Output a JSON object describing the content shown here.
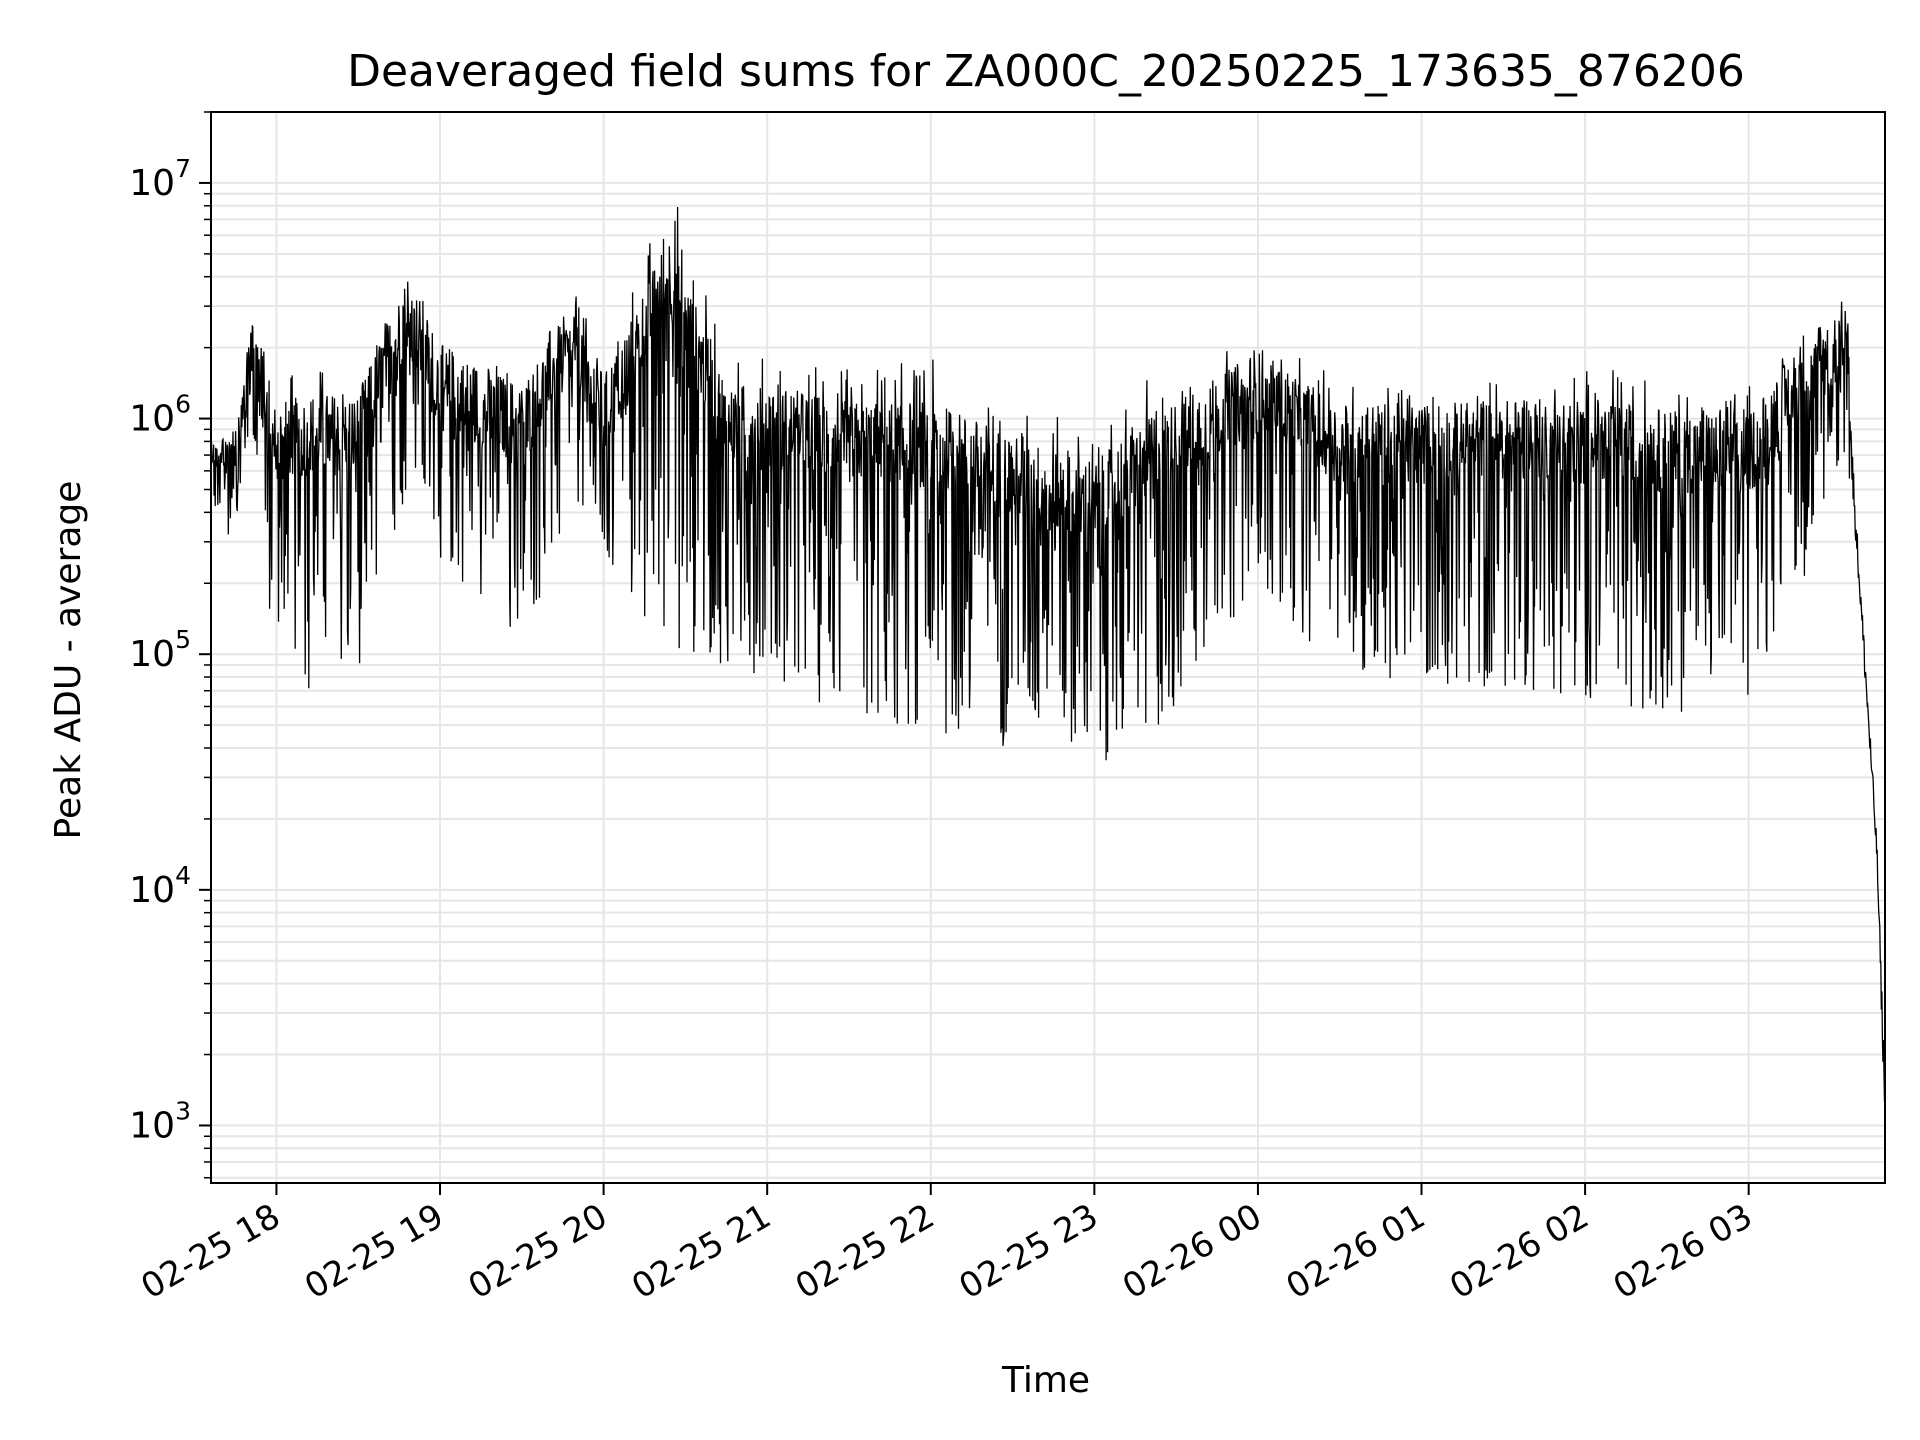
{
  "chart_data": {
    "type": "line",
    "title": "Deaveraged field sums for ZA000C_20250225_173635_876206",
    "xlabel": "Time",
    "ylabel": "Peak ADU - average",
    "yscale": "log",
    "ylim": [
      570,
      20000000
    ],
    "xlim": [
      "2025-02-25 17:36",
      "2025-02-26 03:50"
    ],
    "grid": true,
    "line_color": "#000000",
    "grid_color": "#e6e6e6",
    "x_ticks": [
      {
        "value": "2025-02-25 18:00",
        "label": "02-25 18"
      },
      {
        "value": "2025-02-25 19:00",
        "label": "02-25 19"
      },
      {
        "value": "2025-02-25 20:00",
        "label": "02-25 20"
      },
      {
        "value": "2025-02-25 21:00",
        "label": "02-25 21"
      },
      {
        "value": "2025-02-25 22:00",
        "label": "02-25 22"
      },
      {
        "value": "2025-02-25 23:00",
        "label": "02-25 23"
      },
      {
        "value": "2025-02-26 00:00",
        "label": "02-26 00"
      },
      {
        "value": "2025-02-26 01:00",
        "label": "02-26 01"
      },
      {
        "value": "2025-02-26 02:00",
        "label": "02-26 02"
      },
      {
        "value": "2025-02-26 03:00",
        "label": "02-26 03"
      }
    ],
    "y_ticks": [
      {
        "value": 1000,
        "base": "10",
        "exp": "3"
      },
      {
        "value": 10000,
        "base": "10",
        "exp": "4"
      },
      {
        "value": 100000,
        "base": "10",
        "exp": "5"
      },
      {
        "value": 1000000,
        "base": "10",
        "exp": "6"
      },
      {
        "value": 10000000,
        "base": "10",
        "exp": "7"
      }
    ],
    "series": [
      {
        "values_description_note": "",
        "envelope": [
          {
            "t": "2025-02-25 17:36",
            "high": 800000,
            "low": 420000
          },
          {
            "t": "2025-02-25 17:45",
            "high": 900000,
            "low": 280000
          },
          {
            "t": "2025-02-25 17:51",
            "high": 2700000,
            "low": 700000
          },
          {
            "t": "2025-02-25 18:00",
            "high": 1500000,
            "low": 80000
          },
          {
            "t": "2025-02-25 18:15",
            "high": 1800000,
            "low": 65000
          },
          {
            "t": "2025-02-25 18:30",
            "high": 1600000,
            "low": 85000
          },
          {
            "t": "2025-02-25 18:48",
            "high": 4800000,
            "low": 500000
          },
          {
            "t": "2025-02-25 19:00",
            "high": 2200000,
            "low": 250000
          },
          {
            "t": "2025-02-25 19:30",
            "high": 1700000,
            "low": 110000
          },
          {
            "t": "2025-02-25 19:50",
            "high": 3600000,
            "low": 400000
          },
          {
            "t": "2025-02-25 20:00",
            "high": 1600000,
            "low": 200000
          },
          {
            "t": "2025-02-25 20:24",
            "high": 11500000,
            "low": 100000
          },
          {
            "t": "2025-02-25 20:45",
            "high": 1800000,
            "low": 90000
          },
          {
            "t": "2025-02-25 21:00",
            "high": 1900000,
            "low": 80000
          },
          {
            "t": "2025-02-25 21:30",
            "high": 1700000,
            "low": 52000
          },
          {
            "t": "2025-02-25 22:00",
            "high": 1800000,
            "low": 45000
          },
          {
            "t": "2025-02-25 22:30",
            "high": 1200000,
            "low": 40000
          },
          {
            "t": "2025-02-25 23:00",
            "high": 900000,
            "low": 34000
          },
          {
            "t": "2025-02-25 23:20",
            "high": 1500000,
            "low": 40000
          },
          {
            "t": "2025-02-26 00:00",
            "high": 2200000,
            "low": 200000
          },
          {
            "t": "2025-02-26 00:30",
            "high": 1500000,
            "low": 80000
          },
          {
            "t": "2025-02-26 01:00",
            "high": 1500000,
            "low": 75000
          },
          {
            "t": "2025-02-26 01:30",
            "high": 1600000,
            "low": 70000
          },
          {
            "t": "2025-02-26 02:00",
            "high": 1700000,
            "low": 65000
          },
          {
            "t": "2025-02-26 02:30",
            "high": 1500000,
            "low": 55000
          },
          {
            "t": "2025-02-26 03:00",
            "high": 1400000,
            "low": 60000
          },
          {
            "t": "2025-02-26 03:20",
            "high": 2600000,
            "low": 200000
          },
          {
            "t": "2025-02-26 03:36",
            "high": 3300000,
            "low": 650000
          },
          {
            "t": "2025-02-26 03:39",
            "high": 520000,
            "low": 300000
          },
          {
            "t": "2025-02-26 03:43",
            "high": 100000,
            "low": 60000
          },
          {
            "t": "2025-02-26 03:47",
            "high": 18000,
            "low": 12000
          },
          {
            "t": "2025-02-26 03:50",
            "high": 1800,
            "low": 800
          }
        ]
      }
    ]
  }
}
